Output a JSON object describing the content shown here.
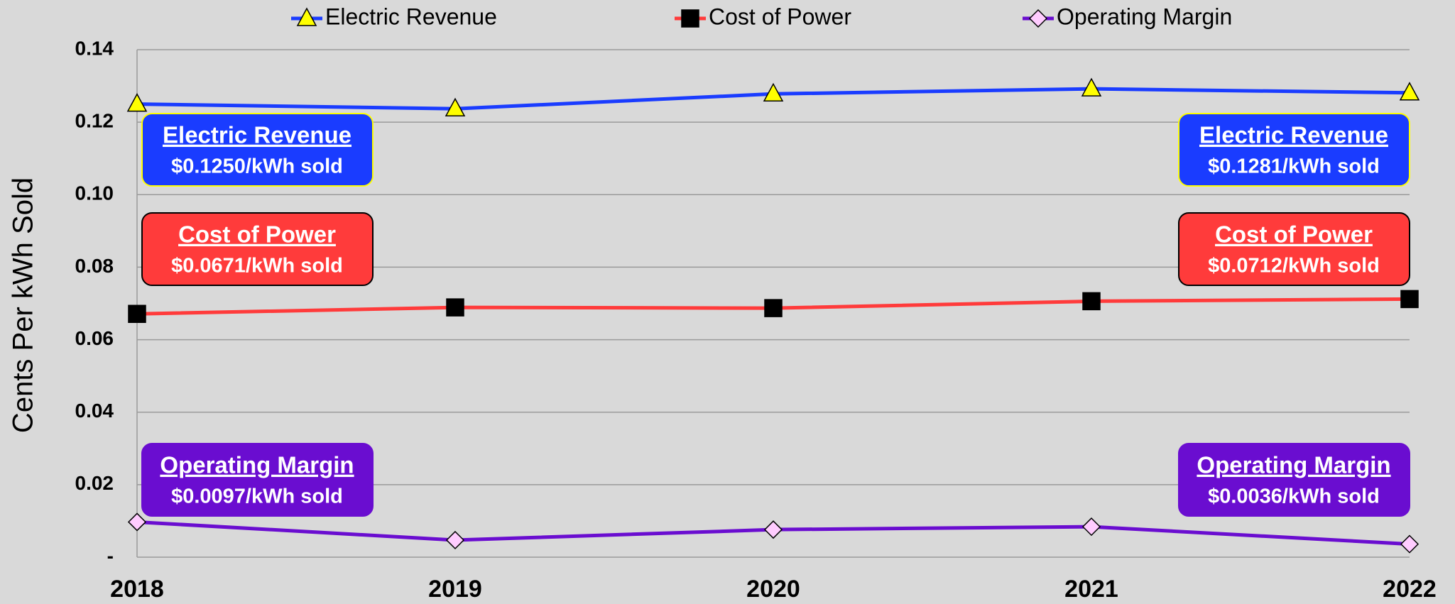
{
  "chart_data": {
    "type": "line",
    "y_label": "Cents Per kWh Sold",
    "categories": [
      "2018",
      "2019",
      "2020",
      "2021",
      "2022"
    ],
    "series": [
      {
        "name": "Electric Revenue",
        "color": "#1a3cff",
        "marker": "triangle",
        "marker_color": "#ffff00",
        "values": [
          0.125,
          0.1237,
          0.1278,
          0.1292,
          0.1281
        ]
      },
      {
        "name": "Cost of Power",
        "color": "#ff3b3b",
        "marker": "square",
        "marker_color": "#000000",
        "values": [
          0.0671,
          0.0689,
          0.0687,
          0.0706,
          0.0712
        ]
      },
      {
        "name": "Operating Margin",
        "color": "#6a0dd0",
        "marker": "diamond",
        "marker_color": "#ffccff",
        "values": [
          0.0097,
          0.0047,
          0.0076,
          0.0084,
          0.0036
        ]
      }
    ],
    "ylim": [
      0,
      0.14
    ],
    "yticks": [
      {
        "value": 0,
        "label": "-"
      },
      0.02,
      0.04,
      0.06,
      0.08,
      {
        "value": 0.1,
        "label": "0.10"
      },
      0.12,
      0.14
    ],
    "grid": true,
    "legend": "top",
    "annotations": [
      {
        "title": "Electric Revenue",
        "text": "$0.1250/kWh sold"
      },
      {
        "title": "Electric Revenue",
        "text": "$0.1281/kWh sold"
      },
      {
        "title": "Cost of Power",
        "text": "$0.0671/kWh sold"
      },
      {
        "title": "Cost of Power",
        "text": "$0.0712/kWh sold"
      },
      {
        "title": "Operating Margin",
        "text": "$0.0097/kWh sold"
      },
      {
        "title": "Operating Margin",
        "text": "$0.0036/kWh sold"
      }
    ]
  }
}
